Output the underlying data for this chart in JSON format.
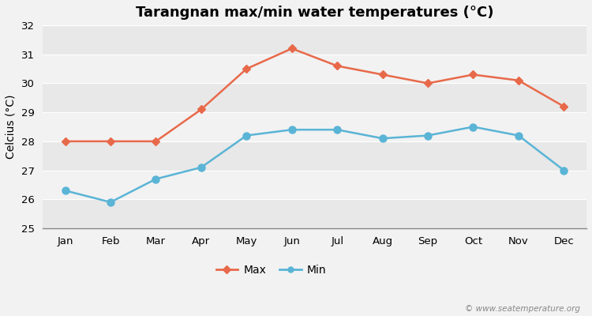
{
  "title": "Tarangnan max/min water temperatures (°C)",
  "ylabel": "Celcius (°C)",
  "months": [
    "Jan",
    "Feb",
    "Mar",
    "Apr",
    "May",
    "Jun",
    "Jul",
    "Aug",
    "Sep",
    "Oct",
    "Nov",
    "Dec"
  ],
  "max_values": [
    28.0,
    28.0,
    28.0,
    29.1,
    30.5,
    31.2,
    30.6,
    30.3,
    30.0,
    30.3,
    30.1,
    29.2
  ],
  "min_values": [
    26.3,
    25.9,
    26.7,
    27.1,
    28.2,
    28.4,
    28.4,
    28.1,
    28.2,
    28.5,
    28.2,
    27.0
  ],
  "max_color": "#e8694a",
  "min_color": "#5ab4d6",
  "fig_bg_color": "#f2f2f2",
  "band_colors": [
    "#e8e8e8",
    "#f2f2f2"
  ],
  "grid_color": "#ffffff",
  "ylim": [
    25,
    32
  ],
  "yticks": [
    25,
    26,
    27,
    28,
    29,
    30,
    31,
    32
  ],
  "watermark": "© www.seatemperature.org",
  "legend_max": "Max",
  "legend_min": "Min"
}
